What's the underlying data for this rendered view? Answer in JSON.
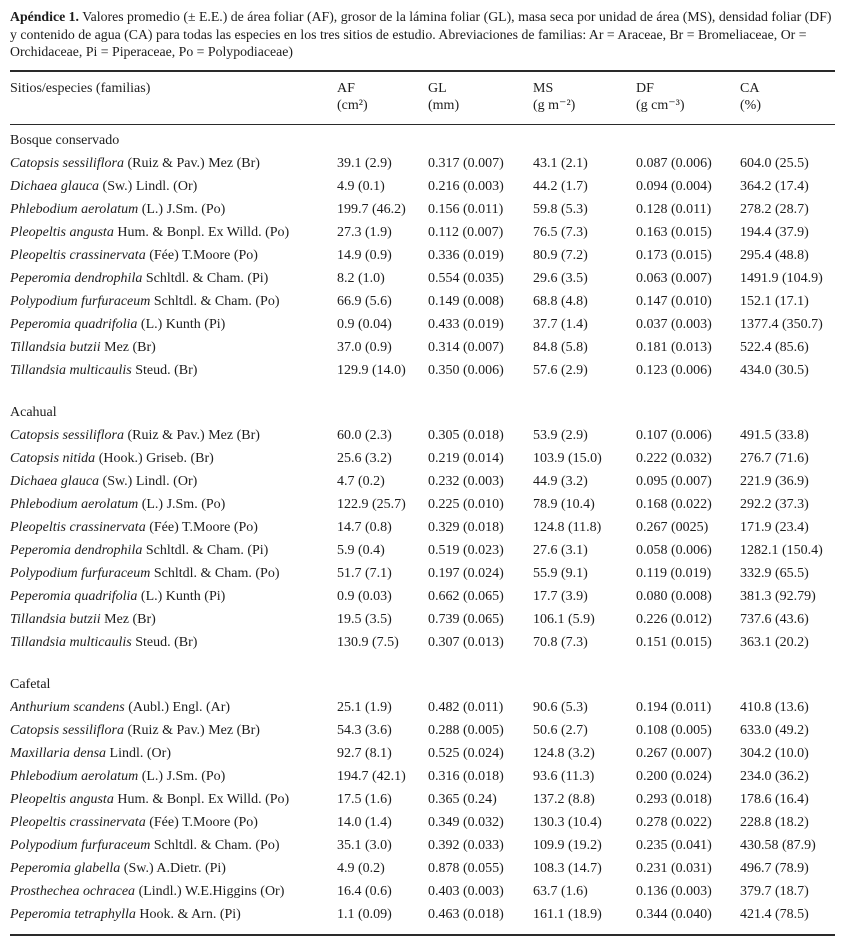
{
  "caption": {
    "label": "Apéndice 1.",
    "text": " Valores promedio (± E.E.) de área foliar (AF), grosor de la lámina foliar (GL), masa seca por unidad de área (MS), densidad foliar (DF) y contenido de agua (CA) para todas las especies en los tres sitios de estudio. Abreviaciones de familias: Ar = Araceae, Br = Bromeliaceae, Or = Orchidaceae, Pi = Piperaceae, Po = Polypodiaceae)"
  },
  "table": {
    "columns": [
      {
        "label": "Sitios/especies (familias)",
        "unit": ""
      },
      {
        "label": "AF",
        "unit": "(cm²)"
      },
      {
        "label": "GL",
        "unit": "(mm)"
      },
      {
        "label": "MS",
        "unit": "(g m⁻²)"
      },
      {
        "label": "DF",
        "unit": "(g cm⁻³)"
      },
      {
        "label": "CA",
        "unit": "(%)"
      }
    ],
    "sections": [
      {
        "title": "Bosque conservado",
        "rows": [
          {
            "species": "Catopsis sessiliflora",
            "authority": "(Ruiz & Pav.) Mez (Br)",
            "af": "39.1 (2.9)",
            "gl": "0.317 (0.007)",
            "ms": "43.1 (2.1)",
            "df": "0.087 (0.006)",
            "ca": "604.0 (25.5)"
          },
          {
            "species": "Dichaea glauca",
            "authority": "(Sw.) Lindl. (Or)",
            "af": "4.9 (0.1)",
            "gl": "0.216 (0.003)",
            "ms": "44.2 (1.7)",
            "df": "0.094 (0.004)",
            "ca": "364.2 (17.4)"
          },
          {
            "species": "Phlebodium aerolatum",
            "authority": "(L.) J.Sm. (Po)",
            "af": "199.7 (46.2)",
            "gl": "0.156 (0.011)",
            "ms": "59.8  (5.3)",
            "df": "0.128 (0.011)",
            "ca": "278.2 (28.7)"
          },
          {
            "species": "Pleopeltis angusta",
            "authority": "Hum. & Bonpl. Ex Willd. (Po)",
            "af": "27.3 (1.9)",
            "gl": "0.112 (0.007)",
            "ms": "76.5 (7.3)",
            "df": "0.163 (0.015)",
            "ca": "194.4 (37.9)"
          },
          {
            "species": "Pleopeltis crassinervata",
            "authority": "(Fée) T.Moore (Po)",
            "af": "14.9 (0.9)",
            "gl": "0.336 (0.019)",
            "ms": "80.9 (7.2)",
            "df": "0.173 (0.015)",
            "ca": "295.4 (48.8)"
          },
          {
            "species": "Peperomia dendrophila",
            "authority": "Schltdl. & Cham. (Pi)",
            "af": "8.2 (1.0)",
            "gl": "0.554 (0.035)",
            "ms": "29.6 (3.5)",
            "df": "0.063 (0.007)",
            "ca": "1491.9 (104.9)"
          },
          {
            "species": "Polypodium furfuraceum",
            "authority": "Schltdl. & Cham. (Po)",
            "af": "66.9 (5.6)",
            "gl": "0.149 (0.008)",
            "ms": "68.8 (4.8)",
            "df": "0.147 (0.010)",
            "ca": "152.1 (17.1)"
          },
          {
            "species": "Peperomia quadrifolia",
            "authority": "(L.) Kunth (Pi)",
            "af": "0.9 (0.04)",
            "gl": "0.433 (0.019)",
            "ms": "37.7 (1.4)",
            "df": "0.037 (0.003)",
            "ca": "1377.4 (350.7)"
          },
          {
            "species": "Tillandsia butzii",
            "authority": "Mez (Br)",
            "af": "37.0 (0.9)",
            "gl": "0.314  (0.007)",
            "ms": "84.8 (5.8)",
            "df": "0.181 (0.013)",
            "ca": "522.4 (85.6)"
          },
          {
            "species": "Tillandsia multicaulis",
            "authority": "Steud. (Br)",
            "af": "129.9 (14.0)",
            "gl": "0.350 (0.006)",
            "ms": "57.6 (2.9)",
            "df": "0.123 (0.006)",
            "ca": "434.0 (30.5)"
          }
        ]
      },
      {
        "title": "Acahual",
        "rows": [
          {
            "species": "Catopsis sessiliflora",
            "authority": "(Ruiz & Pav.) Mez (Br)",
            "af": "60.0 (2.3)",
            "gl": "0.305  (0.018)",
            "ms": "53.9 (2.9)",
            "df": "0.107 (0.006)",
            "ca": "491.5 (33.8)"
          },
          {
            "species": "Catopsis nitida",
            "authority": "(Hook.) Griseb. (Br)",
            "af": "25.6 (3.2)",
            "gl": "0.219 (0.014)",
            "ms": "103.9 (15.0)",
            "df": "0.222 (0.032)",
            "ca": "276.7 (71.6)"
          },
          {
            "species": "Dichaea glauca",
            "authority": "(Sw.) Lindl. (Or)",
            "af": "4.7 (0.2)",
            "gl": "0.232 (0.003)",
            "ms": "44.9 (3.2)",
            "df": "0.095 (0.007)",
            "ca": "221.9  (36.9)"
          },
          {
            "species": "Phlebodium aerolatum",
            "authority": "(L.) J.Sm. (Po)",
            "af": "122.9 (25.7)",
            "gl": "0.225 (0.010)",
            "ms": "78.9 (10.4)",
            "df": "0.168 (0.022)",
            "ca": "292.2 (37.3)"
          },
          {
            "species": "Pleopeltis crassinervata",
            "authority": "(Fée) T.Moore (Po)",
            "af": "14.7 (0.8)",
            "gl": "0.329 (0.018)",
            "ms": "124.8 (11.8)",
            "df": "0.267 (0025)",
            "ca": "171.9 (23.4)"
          },
          {
            "species": "Peperomia dendrophila",
            "authority": "Schltdl. & Cham. (Pi)",
            "af": "5.9 (0.4)",
            "gl": "0.519 (0.023)",
            "ms": "27.6 (3.1)",
            "df": "0.058 (0.006)",
            "ca": "1282.1 (150.4)"
          },
          {
            "species": "Polypodium furfuraceum",
            "authority": "Schltdl. & Cham. (Po)",
            "af": "51.7 (7.1)",
            "gl": "0.197 (0.024)",
            "ms": "55.9 (9.1)",
            "df": "0.119 (0.019)",
            "ca": "332.9 (65.5)"
          },
          {
            "species": "Peperomia quadrifolia",
            "authority": "(L.) Kunth (Pi)",
            "af": "0.9 (0.03)",
            "gl": "0.662 (0.065)",
            "ms": "17.7 (3.9)",
            "df": "0.080 (0.008)",
            "ca": "381.3 (92.79)"
          },
          {
            "species": "Tillandsia butzii",
            "authority": "Mez (Br)",
            "af": "19.5 (3.5)",
            "gl": "0.739 (0.065)",
            "ms": "106.1 (5.9)",
            "df": "0.226 (0.012)",
            "ca": "737.6 (43.6)"
          },
          {
            "species": "Tillandsia multicaulis",
            "authority": "Steud. (Br)",
            "af": "130.9 (7.5)",
            "gl": "0.307 (0.013)",
            "ms": "70.8 (7.3)",
            "df": "0.151 (0.015)",
            "ca": "363.1 (20.2)"
          }
        ]
      },
      {
        "title": "Cafetal",
        "rows": [
          {
            "species": "Anthurium scandens",
            "authority": "(Aubl.) Engl. (Ar)",
            "af": "25.1 (1.9)",
            "gl": "0.482 (0.011)",
            "ms": "90.6 (5.3)",
            "df": "0.194 (0.011)",
            "ca": "410.8 (13.6)"
          },
          {
            "species": "Catopsis sessiliflora",
            "authority": "(Ruiz & Pav.) Mez (Br)",
            "af": "54.3 (3.6)",
            "gl": "0.288 (0.005)",
            "ms": "50.6 (2.7)",
            "df": "0.108 (0.005)",
            "ca": "633.0 (49.2)"
          },
          {
            "species": "Maxillaria densa",
            "authority": "Lindl. (Or)",
            "af": "92.7 (8.1)",
            "gl": "0.525 (0.024)",
            "ms": "124.8 (3.2)",
            "df": "0.267 (0.007)",
            "ca": "304.2 (10.0)"
          },
          {
            "species": "Phlebodium aerolatum",
            "authority": "(L.) J.Sm. (Po)",
            "af": "194.7 (42.1)",
            "gl": "0.316 (0.018)",
            "ms": "93.6 (11.3)",
            "df": "0.200 (0.024)",
            "ca": "234.0 (36.2)"
          },
          {
            "species": "Pleopeltis angusta",
            "authority": "Hum. & Bonpl. Ex Willd. (Po)",
            "af": "17.5 (1.6)",
            "gl": "0.365 (0.24)",
            "ms": "137.2 (8.8)",
            "df": "0.293 (0.018)",
            "ca": "178.6 (16.4)"
          },
          {
            "species": "Pleopeltis crassinervata",
            "authority": "(Fée) T.Moore (Po)",
            "af": "14.0 (1.4)",
            "gl": "0.349 (0.032)",
            "ms": "130.3 (10.4)",
            "df": "0.278 (0.022)",
            "ca": "228.8 (18.2)"
          },
          {
            "species": "Polypodium furfuraceum",
            "authority": "Schltdl. & Cham. (Po)",
            "af": "35.1 (3.0)",
            "gl": "0.392 (0.033)",
            "ms": "109.9 (19.2)",
            "df": "0.235 (0.041)",
            "ca": "430.58 (87.9)"
          },
          {
            "species": "Peperomia glabella",
            "authority": "(Sw.) A.Dietr. (Pi)",
            "af": "4.9 (0.2)",
            "gl": "0.878  (0.055)",
            "ms": "108.3 (14.7)",
            "df": "0.231 (0.031)",
            "ca": "496.7 (78.9)"
          },
          {
            "species": "Prosthechea ochracea",
            "authority": "(Lindl.) W.E.Higgins (Or)",
            "af": "16.4 (0.6)",
            "gl": "0.403 (0.003)",
            "ms": "63.7 (1.6)",
            "df": "0.136 (0.003)",
            "ca": "379.7 (18.7)"
          },
          {
            "species": "Peperomia tetraphylla",
            "authority": "Hook. & Arn. (Pi)",
            "af": "1.1 (0.09)",
            "gl": "0.463 (0.018)",
            "ms": "161.1 (18.9)",
            "df": "0.344 (0.040)",
            "ca": "421.4 (78.5)"
          }
        ]
      }
    ]
  }
}
